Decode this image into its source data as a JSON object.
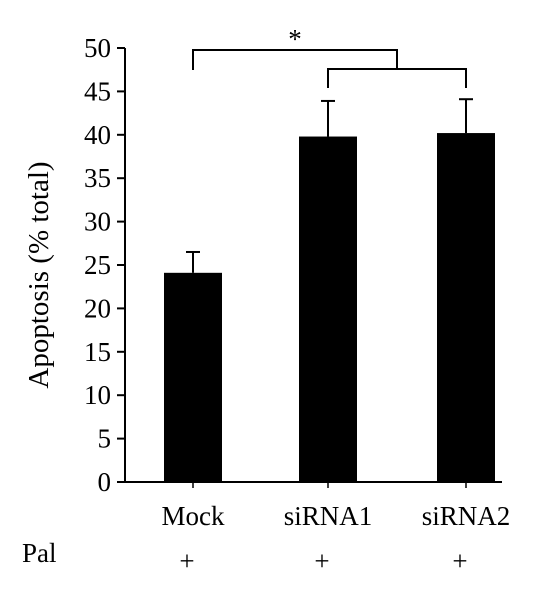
{
  "chart_data": {
    "type": "bar",
    "title": "",
    "xlabel": "",
    "ylabel": "Apoptosis (% total)",
    "ylim": [
      0,
      50
    ],
    "yticks": [
      0,
      5,
      10,
      15,
      20,
      25,
      30,
      35,
      40,
      45,
      50
    ],
    "categories": [
      "Mock",
      "siRNA1",
      "siRNA2"
    ],
    "values": [
      24.1,
      39.8,
      40.2
    ],
    "errors": [
      2.4,
      4.1,
      3.9
    ],
    "bar_color": "#000000",
    "grid": false,
    "legend": "none",
    "treatment_row": {
      "label": "Pal",
      "values": [
        "+",
        "+",
        "+"
      ]
    },
    "significance": {
      "comparison": "Mock vs siRNA1/siRNA2",
      "label": "*"
    }
  }
}
